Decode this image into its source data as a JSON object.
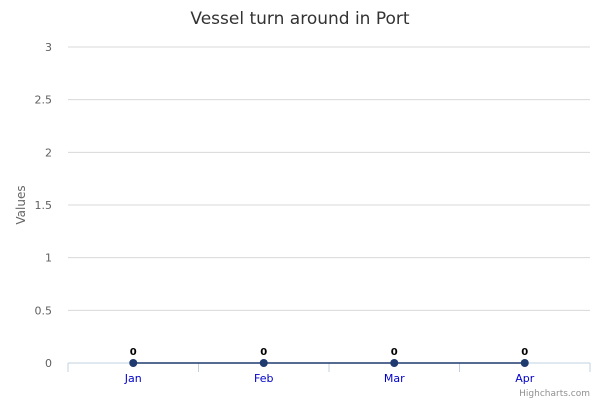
{
  "chart_data": {
    "type": "line",
    "title": "Vessel turn around in Port",
    "ylabel": "Values",
    "xlabel": "",
    "categories": [
      "Jan",
      "Feb",
      "Mar",
      "Apr"
    ],
    "series": [
      {
        "values": [
          0,
          0,
          0,
          0
        ],
        "color": "#1f3a6e"
      }
    ],
    "data_labels": [
      "0",
      "0",
      "0",
      "0"
    ],
    "ylim": [
      0,
      3
    ],
    "yticks": [
      0,
      0.5,
      1,
      1.5,
      2,
      2.5,
      3
    ],
    "ytick_labels": [
      "0",
      "0.5",
      "1",
      "1.5",
      "2",
      "2.5",
      "3"
    ],
    "grid": true,
    "legend": "none",
    "credits": "Highcharts.com",
    "colors": {
      "line": "#1f3a6e",
      "marker": "#1f3a6e",
      "grid": "#d8d8d8",
      "x_labels": "#0000cc"
    }
  }
}
